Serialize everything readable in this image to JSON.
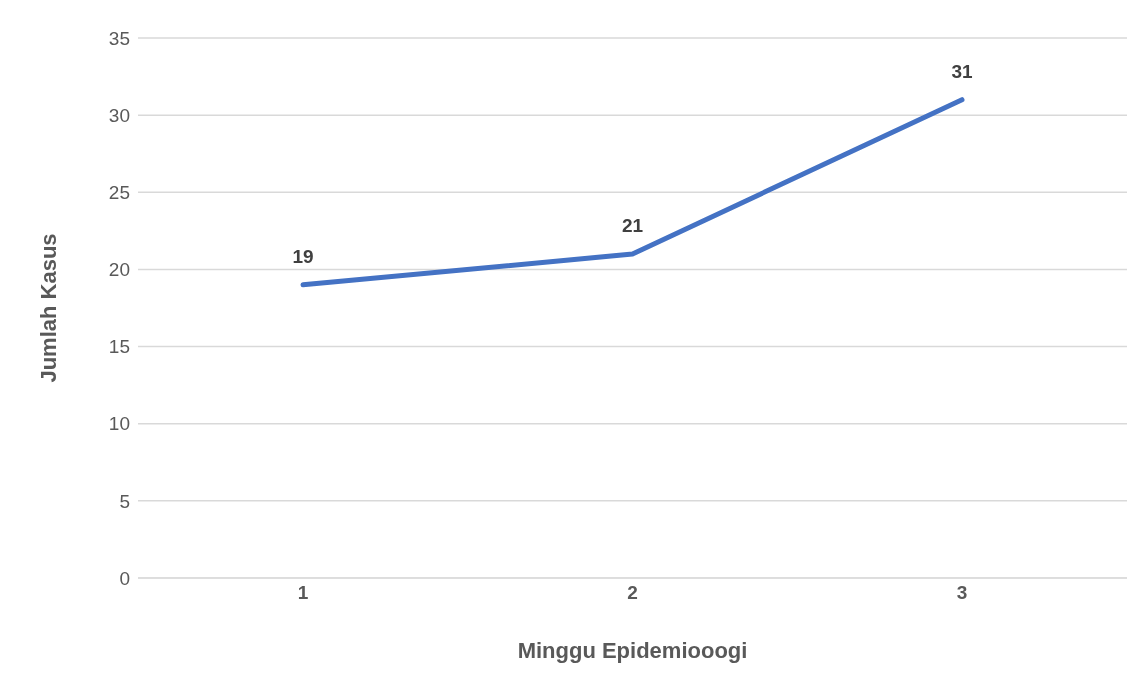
{
  "chart_data": {
    "type": "line",
    "xlabel": "Minggu Epidemiooogi",
    "ylabel": "Jumlah Kasus",
    "categories": [
      "1",
      "2",
      "3"
    ],
    "series": [
      {
        "color": "#4472c4",
        "values": [
          19,
          21,
          31
        ]
      }
    ],
    "ylim": [
      0,
      35
    ],
    "yticks": [
      0,
      5,
      10,
      15,
      20,
      25,
      30,
      35
    ],
    "grid": "y",
    "data_labels": true,
    "marker": "none",
    "line_style": "solid"
  }
}
